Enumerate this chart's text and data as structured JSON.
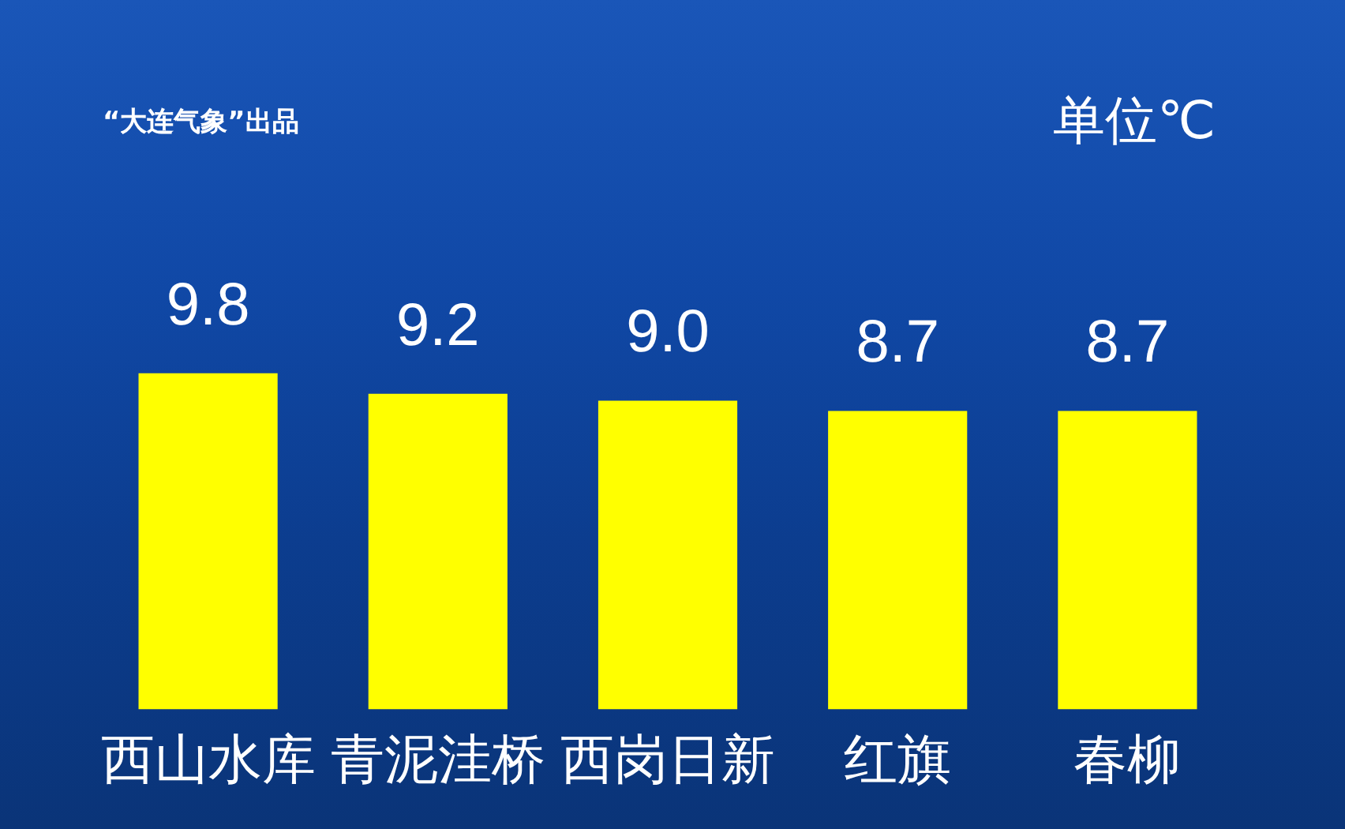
{
  "chart_data": {
    "type": "bar",
    "title": "单位℃",
    "annotations": [
      "“大连气象”出品"
    ],
    "categories": [
      "西山水库",
      "青泥洼桥",
      "西岗日新",
      "红旗",
      "春柳"
    ],
    "values": [
      9.8,
      9.2,
      9.0,
      8.7,
      8.7
    ],
    "value_labels": [
      "9.8",
      "9.2",
      "9.0",
      "8.7",
      "8.7"
    ],
    "color": "#ffff00",
    "tick_labels": "x"
  }
}
